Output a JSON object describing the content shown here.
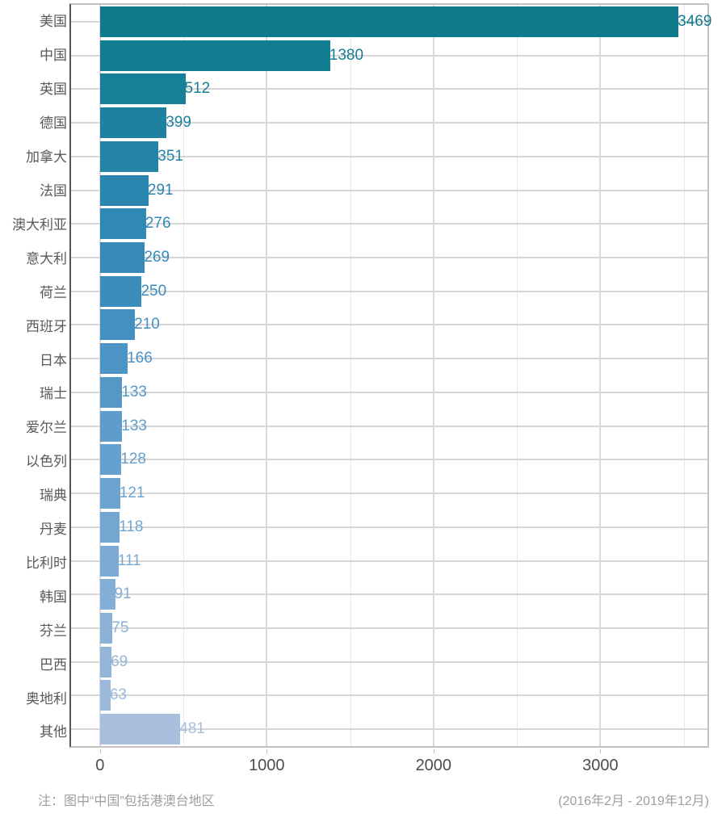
{
  "chart_data": {
    "type": "bar",
    "orientation": "horizontal",
    "title": "",
    "categories": [
      "美国",
      "中国",
      "英国",
      "德国",
      "加拿大",
      "法国",
      "澳大利亚",
      "意大利",
      "荷兰",
      "西班牙",
      "日本",
      "瑞士",
      "爱尔兰",
      "以色列",
      "瑞典",
      "丹麦",
      "比利时",
      "韩国",
      "芬兰",
      "巴西",
      "奥地利",
      "其他"
    ],
    "values": [
      3469,
      1380,
      512,
      399,
      351,
      291,
      276,
      269,
      250,
      210,
      166,
      133,
      133,
      128,
      121,
      118,
      111,
      91,
      75,
      69,
      63,
      481
    ],
    "bar_colors": [
      "#0e7a8c",
      "#137d92",
      "#187f98",
      "#1e819f",
      "#2484a7",
      "#2a86ae",
      "#3088b4",
      "#3689b8",
      "#3c8cbc",
      "#4390c1",
      "#4c94c5",
      "#5598c8",
      "#5d9ccb",
      "#65a0ce",
      "#6ca4d0",
      "#73a7d2",
      "#7baad4",
      "#84aed6",
      "#8cb2d8",
      "#94b5da",
      "#9cb9dc",
      "#a8bfdd"
    ],
    "x_ticks": [
      0,
      1000,
      2000,
      3000
    ],
    "gridline_interval": 500,
    "xlim_data": [
      0,
      3469
    ],
    "axis_expand_fraction": 0.05,
    "value_labels_shown": true,
    "legend": null,
    "grid": "on"
  },
  "footer": {
    "note_left": "注：图中“中国”包括港澳台地区",
    "note_right": "(2016年2月 - 2019年12月)"
  },
  "colors": {
    "background": "#ffffff",
    "panel_border": "#c2c2c2",
    "y_axis_line": "#555555",
    "grid_major": "#dadada",
    "grid_minor": "#e9e9e9",
    "row_gridline": "#d6d6d6",
    "x_tick_mark": "#bdbdbd",
    "category_label": "#595959",
    "x_tick_label": "#4d4d4d",
    "note": "#9e9e9e"
  }
}
